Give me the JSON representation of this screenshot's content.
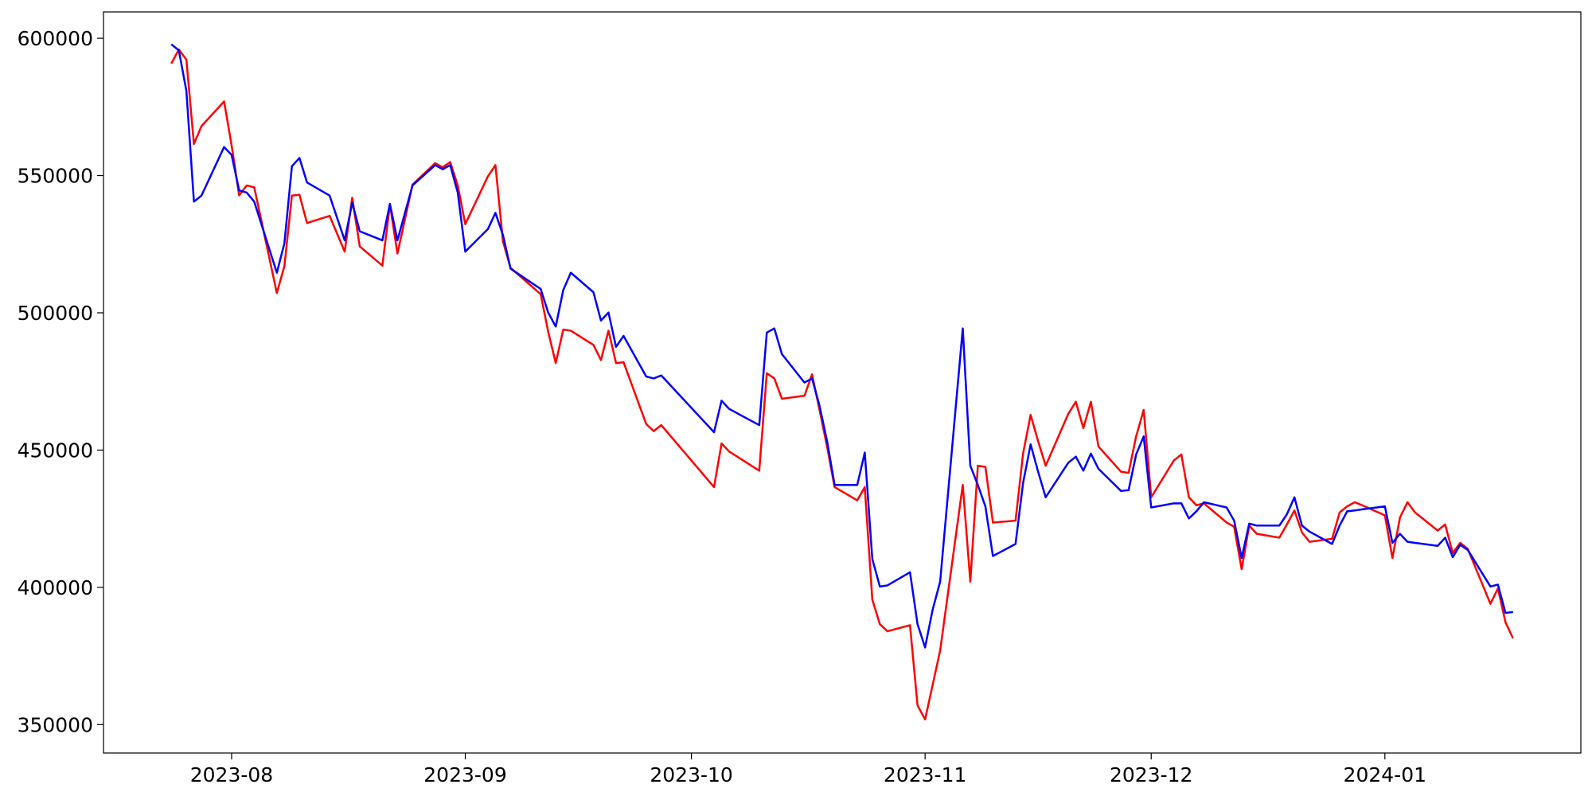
{
  "chart_data": {
    "type": "line",
    "x": [
      19562,
      19563,
      19564,
      19565,
      19566,
      19569,
      19570,
      19571,
      19572,
      19573,
      19576,
      19577,
      19578,
      19579,
      19580,
      19583,
      19585,
      19586,
      19587,
      19590,
      19591,
      19592,
      19594,
      19597,
      19598,
      19599,
      19600,
      19601,
      19604,
      19605,
      19606,
      19607,
      19611,
      19612,
      19613,
      19614,
      19615,
      19618,
      19619,
      19620,
      19621,
      19622,
      19625,
      19626,
      19627,
      19634,
      19635,
      19636,
      19640,
      19641,
      19642,
      19643,
      19646,
      19647,
      19648,
      19649,
      19650,
      19653,
      19654,
      19655,
      19656,
      19657,
      19660,
      19661,
      19662,
      19663,
      19664,
      19667,
      19668,
      19669,
      19670,
      19671,
      19674,
      19675,
      19676,
      19677,
      19678,
      19681,
      19682,
      19683,
      19684,
      19685,
      19688,
      19689,
      19690,
      19691,
      19692,
      19695,
      19696,
      19697,
      19698,
      19699,
      19702,
      19703,
      19704,
      19705,
      19706,
      19709,
      19710,
      19711,
      19712,
      19713,
      19716,
      19717,
      19718,
      19719,
      19720,
      19723,
      19724,
      19725,
      19726,
      19727,
      19730,
      19731,
      19732,
      19733,
      19734,
      19737,
      19738,
      19739,
      19740
    ],
    "xlim": [
      19553,
      19749
    ],
    "xticks": [
      {
        "value": 19570,
        "label": "2023-08"
      },
      {
        "value": 19601,
        "label": "2023-09"
      },
      {
        "value": 19631,
        "label": "2023-10"
      },
      {
        "value": 19662,
        "label": "2023-11"
      },
      {
        "value": 19692,
        "label": "2023-12"
      },
      {
        "value": 19723,
        "label": "2024-01"
      }
    ],
    "ylim": [
      339650,
      609600
    ],
    "yticks": [
      350000,
      400000,
      450000,
      500000,
      550000,
      600000
    ],
    "grid": false,
    "series": [
      {
        "color": "#ff0000",
        "values": [
          590800,
          595900,
          592200,
          561500,
          568000,
          577000,
          561000,
          542800,
          546400,
          545700,
          507200,
          517000,
          542700,
          543000,
          532700,
          535300,
          522300,
          541900,
          524200,
          517200,
          539400,
          521600,
          546700,
          554500,
          553000,
          554900,
          546400,
          532300,
          549700,
          553800,
          526000,
          516400,
          506800,
          493100,
          481700,
          493900,
          493500,
          488300,
          482800,
          493500,
          481700,
          482000,
          459500,
          456900,
          459100,
          436500,
          452400,
          449500,
          442500,
          478000,
          476100,
          468700,
          469800,
          477600,
          464600,
          451300,
          436500,
          431700,
          436500,
          395500,
          386600,
          384000,
          386200,
          357000,
          351900,
          364400,
          377000,
          437300,
          402100,
          444300,
          443900,
          423600,
          424300,
          448700,
          462800,
          453200,
          444300,
          463200,
          467600,
          458000,
          467600,
          451300,
          442100,
          441700,
          455000,
          464600,
          432800,
          446200,
          448400,
          432800,
          429900,
          430600,
          423600,
          422100,
          406600,
          422500,
          419500,
          418100,
          422900,
          428000,
          420000,
          416600,
          417700,
          427300,
          429500,
          431000,
          429900,
          426200,
          410700,
          425400,
          431000,
          427300,
          420700,
          422900,
          412500,
          416200,
          414000,
          394000,
          399600,
          387300,
          381400
        ]
      },
      {
        "color": "#0000ff",
        "values": [
          597800,
          595600,
          580800,
          540500,
          542700,
          560400,
          557500,
          544600,
          543800,
          540500,
          514600,
          525300,
          553400,
          556400,
          547500,
          542700,
          526400,
          540100,
          529700,
          526400,
          539700,
          526400,
          546400,
          553800,
          552300,
          553800,
          543800,
          522300,
          530500,
          536400,
          528300,
          516100,
          508700,
          500100,
          495000,
          508300,
          514600,
          507500,
          497200,
          500100,
          487600,
          491600,
          476800,
          476100,
          477200,
          456500,
          468000,
          465000,
          459100,
          492800,
          494300,
          485000,
          474600,
          476100,
          466100,
          453200,
          437300,
          437300,
          449100,
          410300,
          400300,
          400700,
          405500,
          386600,
          378100,
          391800,
          402100,
          494300,
          444300,
          437300,
          429500,
          411400,
          415800,
          438000,
          452100,
          442100,
          432800,
          445400,
          447600,
          442500,
          448700,
          443200,
          435100,
          435400,
          448400,
          455000,
          429100,
          430600,
          430600,
          425100,
          427700,
          431000,
          429100,
          424300,
          410700,
          423200,
          422500,
          422500,
          426600,
          432800,
          422500,
          420300,
          415800,
          422500,
          427700,
          428000,
          428400,
          429500,
          416200,
          419500,
          416600,
          416200,
          415100,
          418100,
          411000,
          415500,
          413600,
          400300,
          401000,
          390700,
          391000
        ]
      }
    ]
  }
}
